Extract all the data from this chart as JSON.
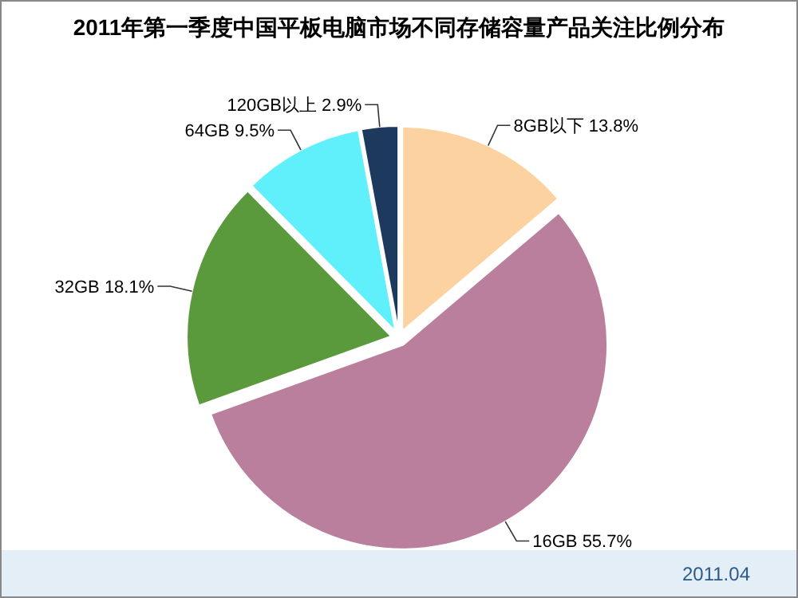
{
  "chart_data": {
    "type": "pie",
    "title": "2011年第一季度中国平板电脑市场不同存储容量产品关注比例分布",
    "categories": [
      "8GB以下",
      "16GB",
      "32GB",
      "64GB",
      "120GB以上"
    ],
    "values": [
      13.8,
      55.7,
      18.1,
      9.5,
      2.9
    ],
    "colors": [
      "#fcd3a0",
      "#b97f9c",
      "#5a9a3c",
      "#5ff0fb",
      "#1d3a5e"
    ],
    "value_labels": [
      "13.8%",
      "55.7%",
      "18.1%",
      "9.5%",
      "2.9%"
    ],
    "annotations": [
      "2011.04"
    ]
  }
}
